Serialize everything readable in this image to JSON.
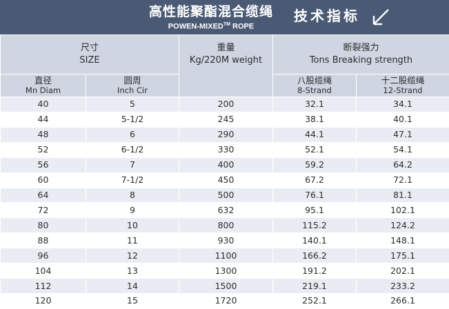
{
  "header": {
    "title_cn": "高性能聚酯混合缆绳",
    "title_en_main": "POWEN-MIXED",
    "title_en_tm": "TM",
    "title_en_tail": " ROPE",
    "spec_label": "技术指标",
    "icon": "diagonal-arrow-icon"
  },
  "table": {
    "size_cn": "尺寸",
    "size_en": "SIZE",
    "weight_cn": "重量",
    "weight_en": "Kg/220M weight",
    "strength_cn": "断裂强力",
    "strength_en": "Tons Breaking strength",
    "diam_cn": "直径",
    "diam_en": "Mn Diam",
    "cir_cn": "圆周",
    "cir_en": "Inch Cir",
    "strand8_cn": "八股缆绳",
    "strand8_en": "8-Strand",
    "strand12_cn": "十二股缆绳",
    "strand12_en": "12-Strand",
    "rows": [
      {
        "diam": "40",
        "cir": "5",
        "weight": "200",
        "s8": "32.1",
        "s12": "34.1"
      },
      {
        "diam": "44",
        "cir": "5-1/2",
        "weight": "245",
        "s8": "38.1",
        "s12": "40.1"
      },
      {
        "diam": "48",
        "cir": "6",
        "weight": "290",
        "s8": "44.1",
        "s12": "47.1"
      },
      {
        "diam": "52",
        "cir": "6-1/2",
        "weight": "330",
        "s8": "52.1",
        "s12": "54.1"
      },
      {
        "diam": "56",
        "cir": "7",
        "weight": "400",
        "s8": "59.2",
        "s12": "64.2"
      },
      {
        "diam": "60",
        "cir": "7-1/2",
        "weight": "450",
        "s8": "67.2",
        "s12": "72.1"
      },
      {
        "diam": "64",
        "cir": "8",
        "weight": "500",
        "s8": "76.1",
        "s12": "81.1"
      },
      {
        "diam": "72",
        "cir": "9",
        "weight": "632",
        "s8": "95.1",
        "s12": "102.1"
      },
      {
        "diam": "80",
        "cir": "10",
        "weight": "800",
        "s8": "115.2",
        "s12": "124.2"
      },
      {
        "diam": "88",
        "cir": "11",
        "weight": "930",
        "s8": "140.1",
        "s12": "148.1"
      },
      {
        "diam": "96",
        "cir": "12",
        "weight": "1100",
        "s8": "166.2",
        "s12": "175.1"
      },
      {
        "diam": "104",
        "cir": "13",
        "weight": "1300",
        "s8": "191.2",
        "s12": "202.1"
      },
      {
        "diam": "112",
        "cir": "14",
        "weight": "1500",
        "s8": "219.1",
        "s12": "233.2"
      },
      {
        "diam": "120",
        "cir": "15",
        "weight": "1720",
        "s8": "252.1",
        "s12": "266.1"
      }
    ]
  },
  "colors": {
    "banner": "#4a5a75",
    "header_cells": "#cfd6e2",
    "row_shade": "#e9edf3"
  }
}
